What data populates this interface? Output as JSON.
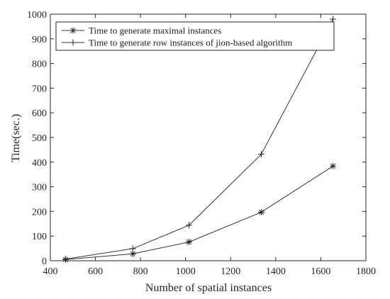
{
  "chart_data": {
    "type": "line",
    "xlabel": "Number of spatial instances",
    "ylabel": "Time(sec.)",
    "xlim": [
      400,
      1800
    ],
    "ylim": [
      0,
      1000
    ],
    "xticks": [
      400,
      600,
      800,
      1000,
      1200,
      1400,
      1600,
      1800
    ],
    "yticks": [
      0,
      100,
      200,
      300,
      400,
      500,
      600,
      700,
      800,
      900,
      1000
    ],
    "grid": false,
    "legend_position": "top-left",
    "series": [
      {
        "name": "Time to generate maximal instances",
        "marker": "asterisk",
        "x": [
          468,
          766,
          1015,
          1336,
          1654
        ],
        "y": [
          5,
          28,
          76,
          197,
          384
        ]
      },
      {
        "name": "Time to generate row instances of jion-based algorithm",
        "marker": "plus",
        "x": [
          468,
          766,
          1015,
          1336,
          1654
        ],
        "y": [
          7,
          49,
          144,
          432,
          980
        ]
      }
    ]
  }
}
